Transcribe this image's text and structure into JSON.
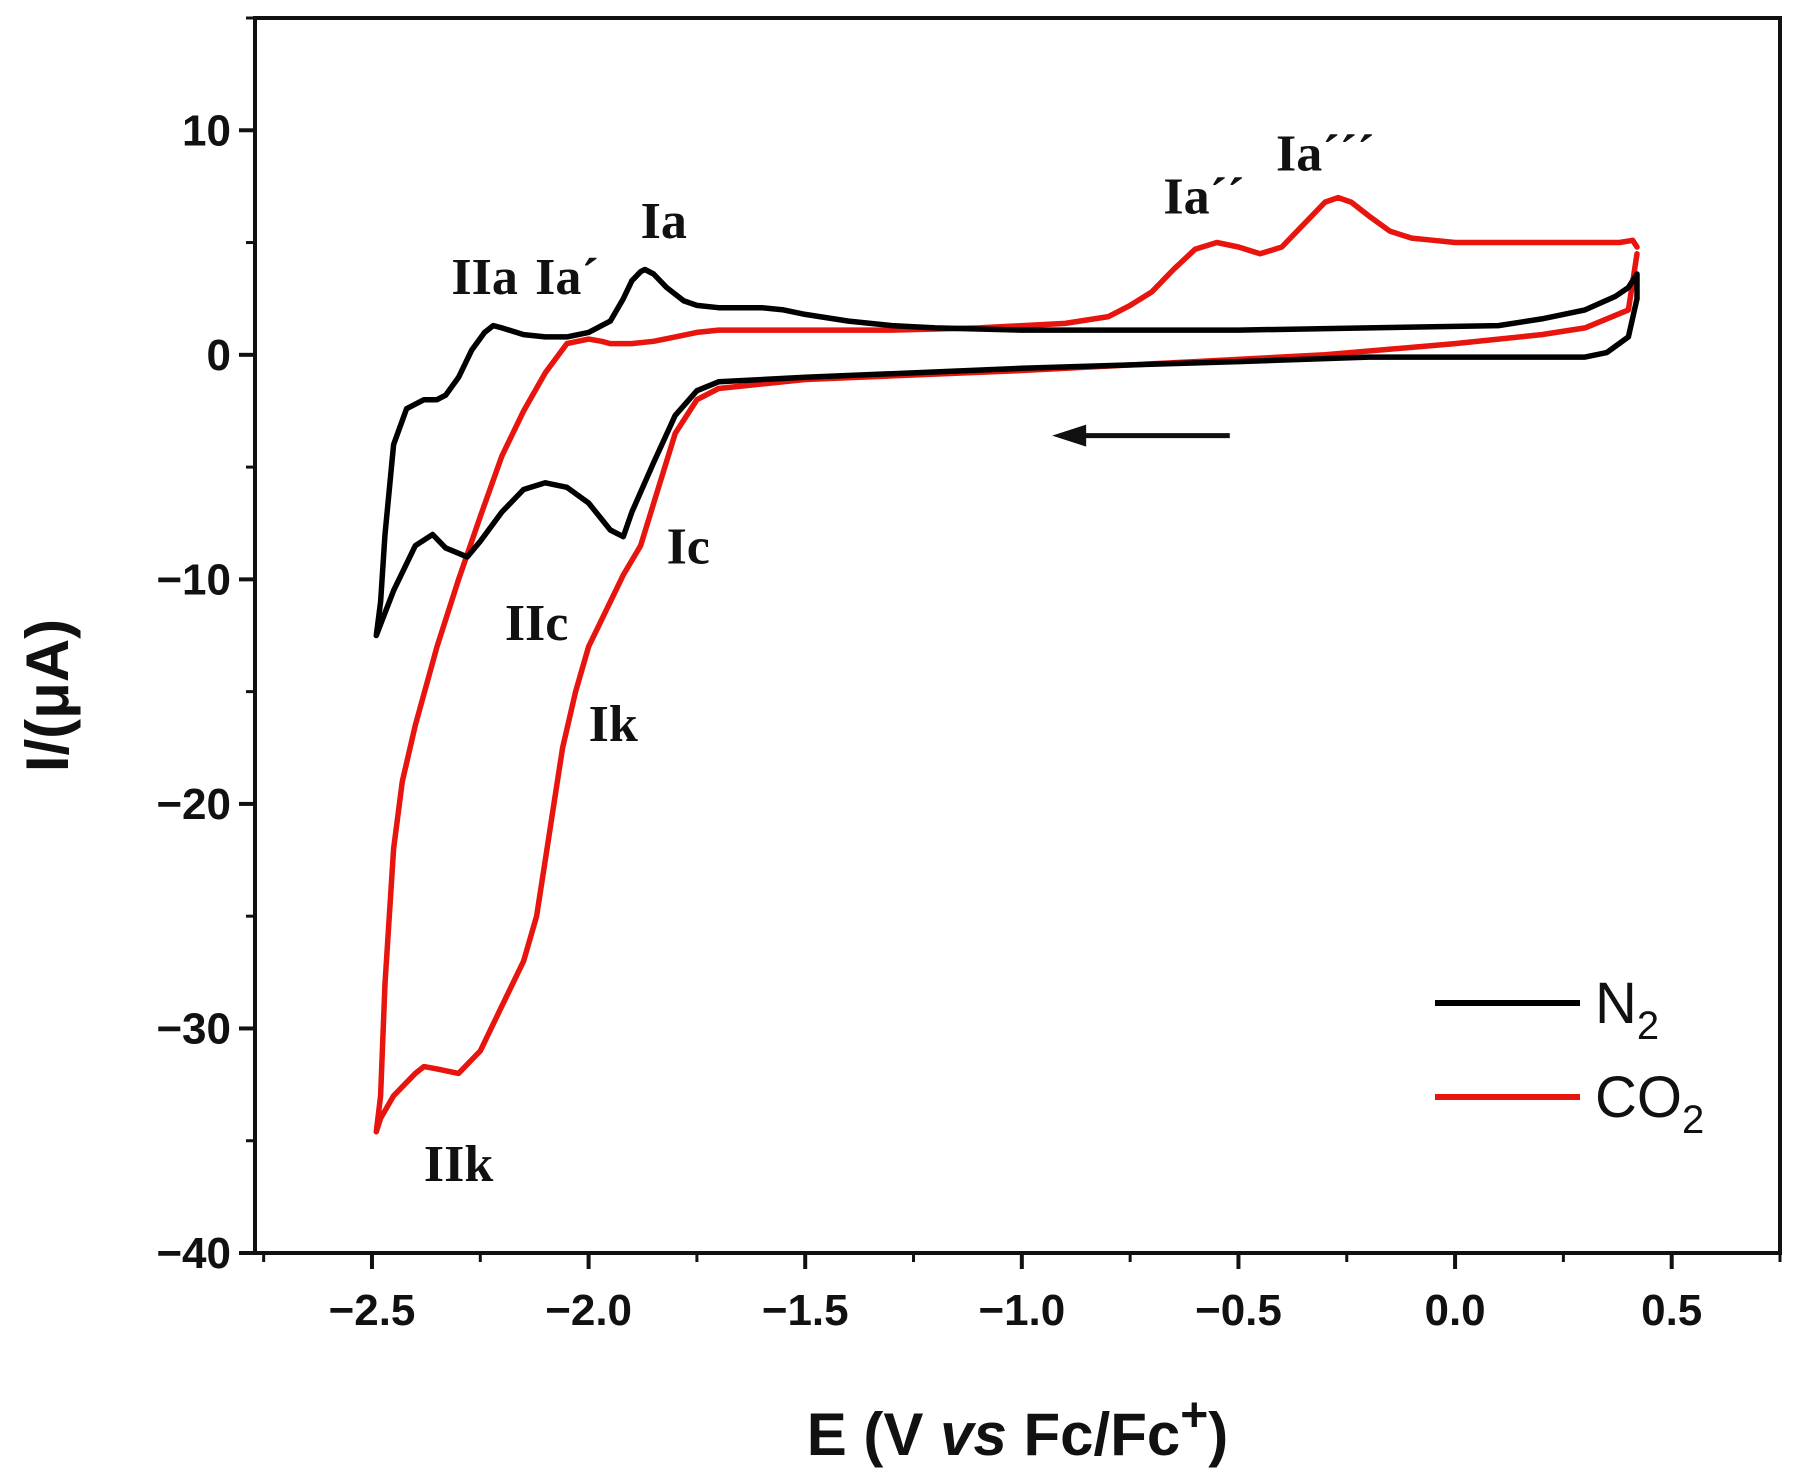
{
  "chart_data": {
    "type": "line",
    "title": "",
    "xlabel": {
      "prefix": "E (V ",
      "italic": "vs",
      "suffix": " Fc/Fc",
      "sup": "+",
      "close": ")"
    },
    "ylabel": "I/(μA)",
    "xlim": [
      -2.77,
      0.75
    ],
    "ylim": [
      -40,
      15
    ],
    "x_ticks": [
      -2.5,
      -2.0,
      -1.5,
      -1.0,
      -0.5,
      0.0,
      0.5
    ],
    "x_tick_labels": [
      "−2.5",
      "−2.0",
      "−1.5",
      "−1.0",
      "−0.5",
      "0.0",
      "0.5"
    ],
    "y_ticks": [
      10,
      0,
      -10,
      -20,
      -30,
      -40
    ],
    "y_tick_labels": [
      "10",
      "0",
      "−10",
      "−20",
      "−30",
      "−40"
    ],
    "x_minor_ticks": [
      -2.75,
      -2.25,
      -1.75,
      -1.25,
      -0.75,
      -0.25,
      0.25,
      0.75
    ],
    "y_minor_ticks": [
      15,
      5,
      -5,
      -15,
      -25,
      -35
    ],
    "grid": false,
    "legend_position": "bottom-right",
    "series": [
      {
        "name": "N2",
        "label_main": "N",
        "label_sub": "2",
        "color": "#000000",
        "x": [
          -0.2,
          -0.5,
          -1.0,
          -1.5,
          -1.7,
          -1.75,
          -1.8,
          -1.85,
          -1.9,
          -1.92,
          -1.95,
          -2.0,
          -2.05,
          -2.1,
          -2.15,
          -2.2,
          -2.25,
          -2.28,
          -2.33,
          -2.36,
          -2.4,
          -2.45,
          -2.48,
          -2.49,
          -2.48,
          -2.47,
          -2.45,
          -2.42,
          -2.38,
          -2.35,
          -2.33,
          -2.3,
          -2.27,
          -2.24,
          -2.22,
          -2.2,
          -2.15,
          -2.1,
          -2.05,
          -2.0,
          -1.95,
          -1.92,
          -1.9,
          -1.88,
          -1.87,
          -1.85,
          -1.82,
          -1.78,
          -1.75,
          -1.7,
          -1.65,
          -1.6,
          -1.55,
          -1.5,
          -1.4,
          -1.3,
          -1.2,
          -1.0,
          -0.5,
          -0.2,
          0.1,
          0.2,
          0.3,
          0.37,
          0.4,
          0.42,
          0.42,
          0.4,
          0.35,
          0.3,
          0.2,
          0.0,
          -0.2
        ],
        "y": [
          -0.1,
          -0.3,
          -0.6,
          -1.0,
          -1.2,
          -1.6,
          -2.7,
          -4.8,
          -7.0,
          -8.1,
          -7.8,
          -6.6,
          -5.9,
          -5.7,
          -6.0,
          -7.0,
          -8.3,
          -9.0,
          -8.6,
          -8.0,
          -8.5,
          -10.5,
          -12.0,
          -12.5,
          -11.0,
          -8.0,
          -4.0,
          -2.4,
          -2.0,
          -2.0,
          -1.8,
          -1.0,
          0.2,
          1.0,
          1.3,
          1.2,
          0.9,
          0.8,
          0.8,
          1.0,
          1.5,
          2.5,
          3.3,
          3.7,
          3.8,
          3.6,
          3.0,
          2.4,
          2.2,
          2.1,
          2.1,
          2.1,
          2.0,
          1.8,
          1.5,
          1.3,
          1.2,
          1.1,
          1.1,
          1.2,
          1.3,
          1.6,
          2.0,
          2.6,
          3.0,
          3.6,
          2.5,
          0.8,
          0.1,
          -0.1,
          -0.1,
          -0.1,
          -0.1
        ]
      },
      {
        "name": "CO2",
        "label_main": "CO",
        "label_sub": "2",
        "color": "#e8140e",
        "x": [
          0.42,
          0.4,
          0.3,
          0.2,
          0.0,
          -0.3,
          -0.6,
          -1.0,
          -1.5,
          -1.7,
          -1.75,
          -1.8,
          -1.84,
          -1.88,
          -1.92,
          -1.95,
          -2.0,
          -2.03,
          -2.06,
          -2.08,
          -2.1,
          -2.12,
          -2.15,
          -2.2,
          -2.25,
          -2.3,
          -2.35,
          -2.38,
          -2.4,
          -2.45,
          -2.48,
          -2.49,
          -2.48,
          -2.47,
          -2.45,
          -2.43,
          -2.4,
          -2.35,
          -2.3,
          -2.25,
          -2.2,
          -2.15,
          -2.1,
          -2.05,
          -2.0,
          -1.97,
          -1.95,
          -1.9,
          -1.85,
          -1.8,
          -1.75,
          -1.7,
          -1.6,
          -1.5,
          -1.3,
          -1.1,
          -0.9,
          -0.8,
          -0.75,
          -0.7,
          -0.65,
          -0.6,
          -0.55,
          -0.5,
          -0.45,
          -0.4,
          -0.35,
          -0.3,
          -0.27,
          -0.24,
          -0.2,
          -0.15,
          -0.1,
          -0.05,
          0.0,
          0.1,
          0.2,
          0.3,
          0.38,
          0.41,
          0.42
        ],
        "y": [
          4.5,
          2.0,
          1.2,
          0.9,
          0.5,
          0.0,
          -0.3,
          -0.7,
          -1.1,
          -1.5,
          -2.0,
          -3.5,
          -6.0,
          -8.5,
          -9.8,
          -11.0,
          -13.0,
          -15.0,
          -17.5,
          -20.0,
          -22.5,
          -25.0,
          -27.0,
          -29.0,
          -31.0,
          -32.0,
          -31.8,
          -31.7,
          -32.0,
          -33.0,
          -34.0,
          -34.6,
          -33.0,
          -28.0,
          -22.0,
          -19.0,
          -16.5,
          -13.0,
          -10.0,
          -7.2,
          -4.5,
          -2.5,
          -0.8,
          0.5,
          0.7,
          0.6,
          0.5,
          0.5,
          0.6,
          0.8,
          1.0,
          1.1,
          1.1,
          1.1,
          1.1,
          1.2,
          1.4,
          1.7,
          2.2,
          2.8,
          3.8,
          4.7,
          5.0,
          4.8,
          4.5,
          4.8,
          5.8,
          6.8,
          7.0,
          6.8,
          6.2,
          5.5,
          5.2,
          5.1,
          5.0,
          5.0,
          5.0,
          5.0,
          5.0,
          5.1,
          4.8
        ]
      }
    ],
    "annotations": [
      {
        "text": "Ia",
        "x": -1.88,
        "y": 5.2,
        "anchor": "start"
      },
      {
        "text": "Ia´",
        "x": -2.05,
        "y": 2.7,
        "anchor": "middle"
      },
      {
        "text": "IIa",
        "x": -2.24,
        "y": 2.7,
        "anchor": "middle"
      },
      {
        "text": "Ia´´",
        "x": -0.58,
        "y": 6.3,
        "anchor": "middle"
      },
      {
        "text": "Ia´´´",
        "x": -0.3,
        "y": 8.2,
        "anchor": "middle"
      },
      {
        "text": "Ic",
        "x": -1.82,
        "y": -9.3,
        "anchor": "start"
      },
      {
        "text": "IIc",
        "x": -2.12,
        "y": -12.7,
        "anchor": "middle"
      },
      {
        "text": "Ik",
        "x": -2.0,
        "y": -17.2,
        "anchor": "start"
      },
      {
        "text": "IIk",
        "x": -2.3,
        "y": -36.8,
        "anchor": "middle"
      }
    ],
    "arrow": {
      "from_x": -0.52,
      "to_x": -0.93,
      "y": -3.6,
      "direction": "left"
    }
  }
}
